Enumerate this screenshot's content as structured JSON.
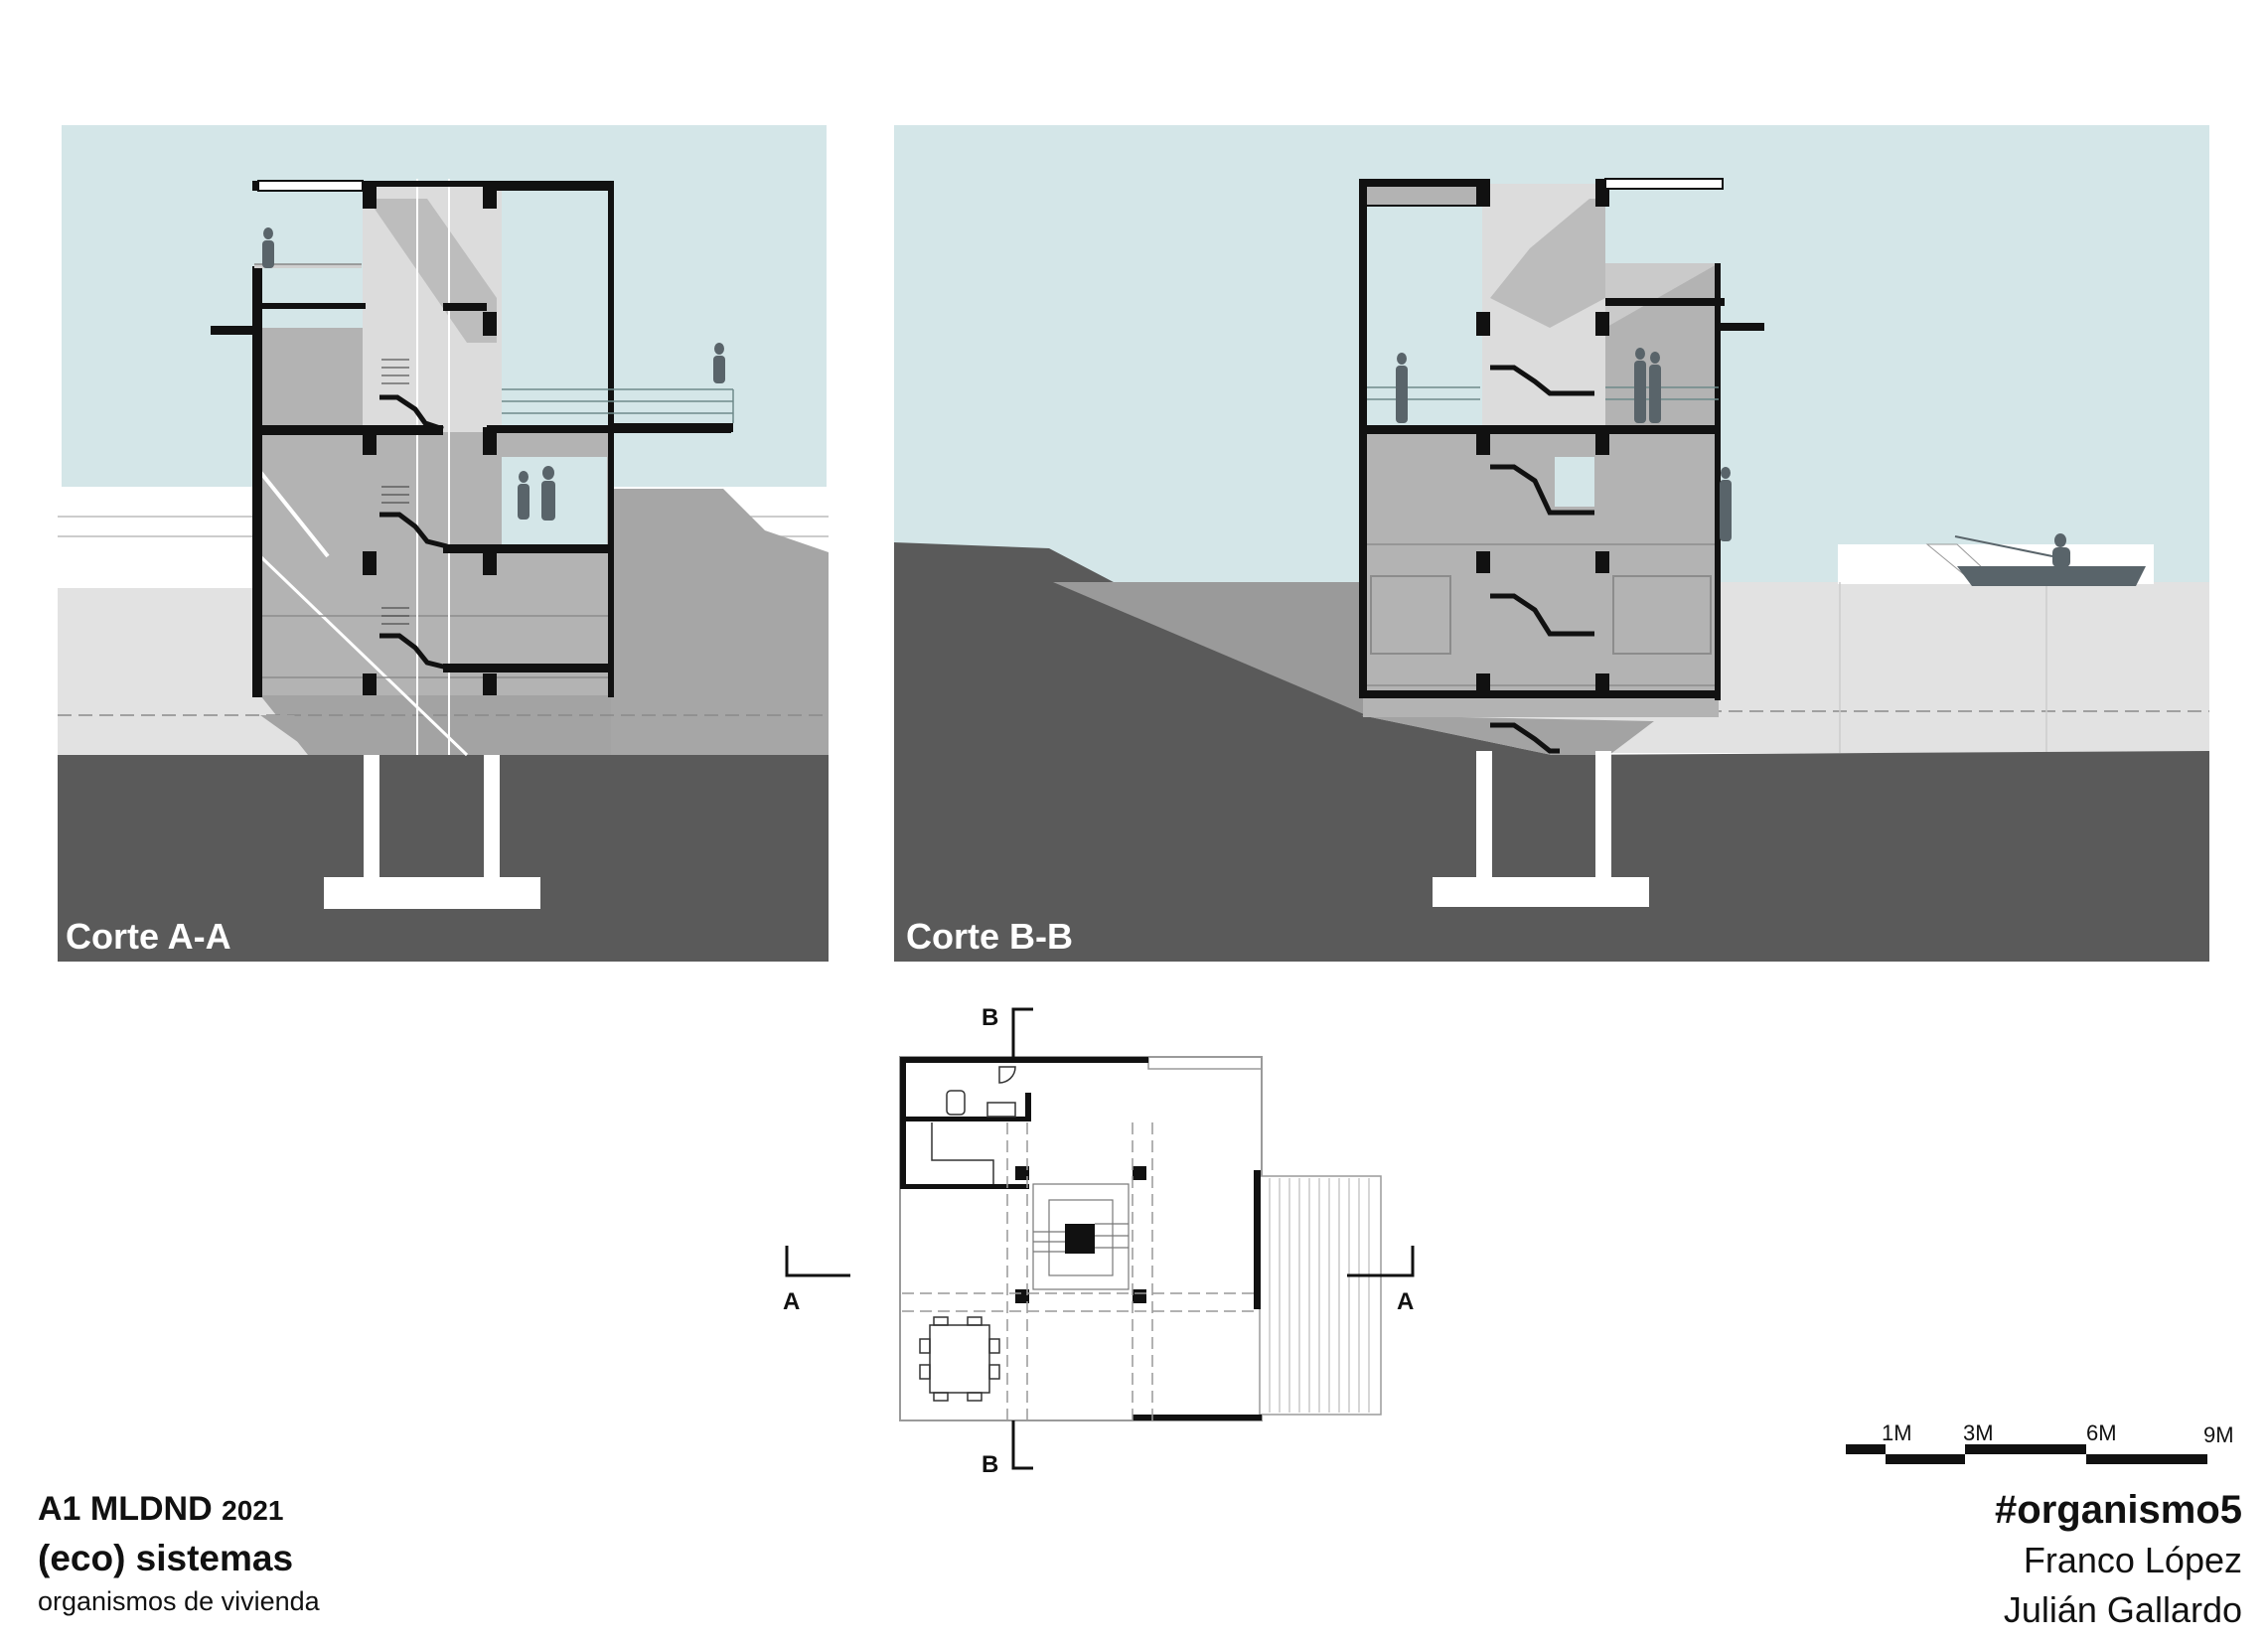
{
  "sections": {
    "aa": {
      "label": "Corte A-A"
    },
    "bb": {
      "label": "Corte B-B"
    }
  },
  "plan": {
    "cut_a_left": "A",
    "cut_a_right": "A",
    "cut_b_top": "B",
    "cut_b_bottom": "B"
  },
  "scale_bar": {
    "labels": [
      "1M",
      "3M",
      "6M",
      "9M"
    ]
  },
  "footer": {
    "course": "A1 MLDND",
    "year": "2021",
    "project": "(eco) sistemas",
    "subtitle": "organismos de vivienda",
    "hashtag": "#organismo5",
    "author_1": "Franco López",
    "author_2": "Julián Gallardo"
  },
  "colors": {
    "sky": "#d4e6e8",
    "earth": "#5a5a5a",
    "water": "#e2e2e2",
    "building_fill": "#b3b3b3",
    "structure": "#111111"
  }
}
